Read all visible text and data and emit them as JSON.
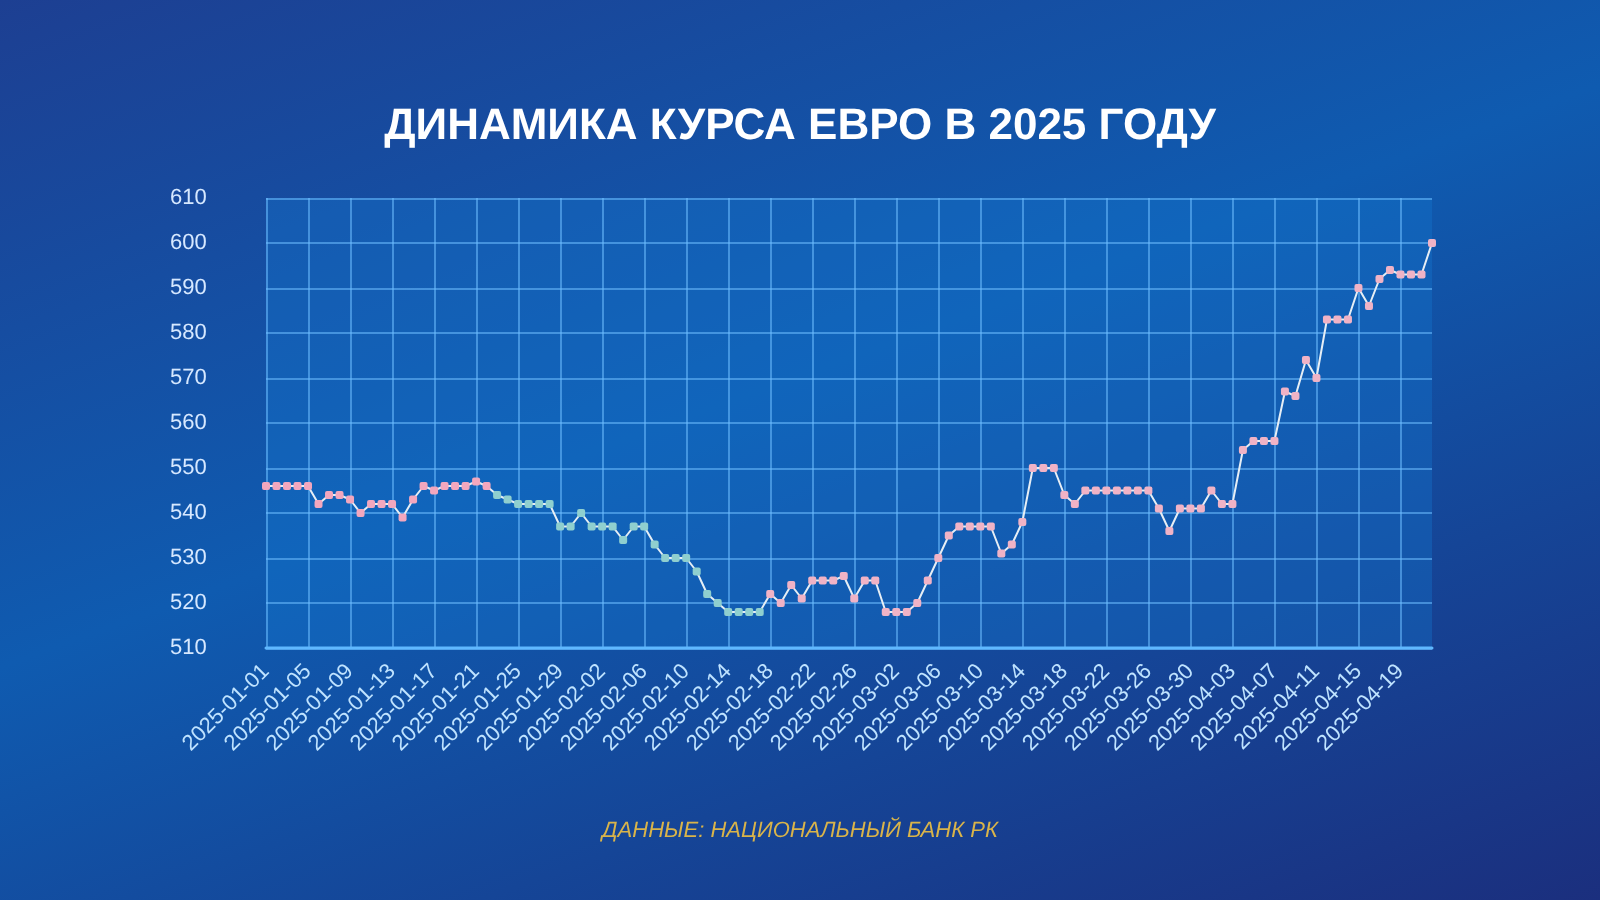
{
  "chart_data": {
    "type": "line",
    "title": "ДИНАМИКА КУРСА ЕВРО В 2025 ГОДУ",
    "annotations": [
      "ДАННЫЕ: НАЦИОНАЛЬНЫЙ БАНК РК"
    ],
    "categories": [
      "2025-01-01",
      null,
      null,
      null,
      "2025-01-05",
      null,
      null,
      null,
      "2025-01-09",
      null,
      null,
      null,
      "2025-01-13",
      null,
      null,
      null,
      "2025-01-17",
      null,
      null,
      null,
      "2025-01-21",
      null,
      null,
      null,
      "2025-01-25",
      null,
      null,
      null,
      "2025-01-29",
      null,
      null,
      null,
      "2025-02-02",
      null,
      null,
      null,
      "2025-02-06",
      null,
      null,
      null,
      "2025-02-10",
      null,
      null,
      null,
      "2025-02-14",
      null,
      null,
      null,
      "2025-02-18",
      null,
      null,
      null,
      "2025-02-22",
      null,
      null,
      null,
      "2025-02-26",
      null,
      null,
      null,
      "2025-03-02",
      null,
      null,
      null,
      "2025-03-06",
      null,
      null,
      null,
      "2025-03-10",
      null,
      null,
      null,
      "2025-03-14",
      null,
      null,
      null,
      "2025-03-18",
      null,
      null,
      null,
      "2025-03-22",
      null,
      null,
      null,
      "2025-03-26",
      null,
      null,
      null,
      "2025-03-30",
      null,
      null,
      null,
      "2025-04-03",
      null,
      null,
      null,
      "2025-04-07",
      null,
      null,
      null,
      "2025-04-11",
      null,
      null,
      null,
      "2025-04-15",
      null,
      null,
      null,
      "2025-04-19",
      null,
      null,
      null
    ],
    "series": [
      {
        "color": "#e6eef5",
        "colors": [
          "#f2a7be",
          "#f2a7be",
          "#f2a7be",
          "#f2a7be",
          "#f2a7be",
          "#f2a7be",
          "#f2a7be",
          "#f2a7be",
          "#f2a7be",
          "#f2a7be",
          "#f2a7be",
          "#f2a7be",
          "#f2a7be",
          "#f2a7be",
          "#f2a7be",
          "#f2a7be",
          "#f2a7be",
          "#f2a7be",
          "#f2a7be",
          "#f2a7be",
          "#f2a7be",
          "#f2a7be",
          "#8fcfcf",
          "#8fcfcf",
          "#8fcfcf",
          "#8fcfcf",
          "#8fcfcf",
          "#8fcfcf",
          "#8fcfcf",
          "#8fcfcf",
          "#8fcfcf",
          "#8fcfcf",
          "#8fcfcf",
          "#8fcfcf",
          "#8fcfcf",
          "#8fcfcf",
          "#8fcfcf",
          "#8fcfcf",
          "#8fcfcf",
          "#8fcfcf",
          "#8fcfcf",
          "#8fcfcf",
          "#8fcfcf",
          "#8fcfcf",
          "#8fcfcf",
          "#8fcfcf",
          "#8fcfcf",
          "#8fcfcf",
          "#f0b3c6",
          "#f0b3c6",
          "#f0b3c6",
          "#f0b3c6",
          "#f0b3c6",
          "#f0b3c6",
          "#f0b3c6",
          "#f0b3c6",
          "#f0b3c6",
          "#f0b3c6",
          "#f0b3c6",
          "#f0b3c6",
          "#f0b3c6",
          "#f0b3c6",
          "#f0b3c6",
          "#f0b3c6",
          "#f0b3c6",
          "#f0b3c6",
          "#f0b3c6",
          "#f0b3c6",
          "#f0b3c6",
          "#f0b3c6",
          "#f0b3c6",
          "#f0b3c6",
          "#f0b3c6",
          "#f0b3c6",
          "#f0b3c6",
          "#f0b3c6",
          "#f0b3c6",
          "#f0b3c6",
          "#f0b3c6",
          "#f0b3c6",
          "#f0b3c6",
          "#f0b3c6",
          "#f0b3c6",
          "#f0b3c6",
          "#f0b3c6",
          "#f0b3c6",
          "#f0b3c6",
          "#f0b3c6",
          "#f0b3c6",
          "#f0b3c6",
          "#f0b3c6",
          "#f0b3c6",
          "#f0b3c6",
          "#f0b3c6",
          "#f0b3c6",
          "#f0b3c6",
          "#f0b3c6",
          "#f0b3c6",
          "#f0b3c6",
          "#f0b3c6",
          "#f0b3c6",
          "#f0b3c6",
          "#f0b3c6",
          "#f0b3c6",
          "#f0b3c6",
          "#f0b3c6",
          "#f0b3c6",
          "#f0b3c6",
          "#f0b3c6",
          "#f0b3c6",
          "#f0b3c6",
          "#f0b3c6"
        ],
        "values": [
          546,
          546,
          546,
          546,
          546,
          542,
          544,
          544,
          543,
          540,
          542,
          542,
          542,
          539,
          543,
          546,
          545,
          546,
          546,
          546,
          547,
          546,
          544,
          543,
          542,
          542,
          542,
          542,
          537,
          537,
          540,
          537,
          537,
          537,
          534,
          537,
          537,
          533,
          530,
          530,
          530,
          527,
          522,
          520,
          518,
          518,
          518,
          518,
          522,
          520,
          524,
          521,
          525,
          525,
          525,
          526,
          521,
          525,
          525,
          518,
          518,
          518,
          520,
          525,
          530,
          535,
          537,
          537,
          537,
          537,
          531,
          533,
          538,
          550,
          550,
          550,
          544,
          542,
          545,
          545,
          545,
          545,
          545,
          545,
          545,
          541,
          536,
          541,
          541,
          541,
          545,
          542,
          542,
          554,
          556,
          556,
          556,
          567,
          566,
          574,
          570,
          583,
          583,
          583,
          590,
          586,
          592,
          594,
          593,
          593,
          593,
          600
        ]
      }
    ],
    "ylim": [
      510,
      610
    ],
    "yticks": [
      510,
      520,
      530,
      540,
      550,
      560,
      570,
      580,
      590,
      600,
      610
    ],
    "grid": true,
    "marker": "square"
  }
}
